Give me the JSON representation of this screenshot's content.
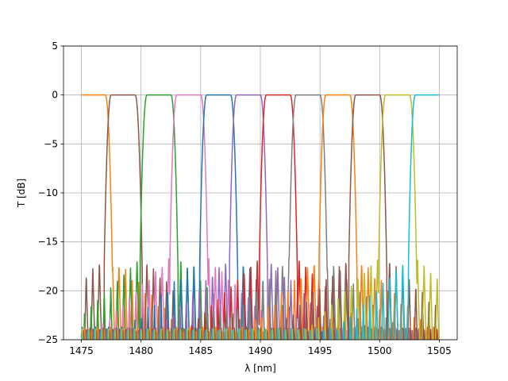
{
  "chart_data": {
    "type": "line",
    "title": "",
    "xlabel": "λ [nm]",
    "ylabel": "T [dB]",
    "xlim": [
      1473.5,
      1506.5
    ],
    "ylim": [
      -25,
      5
    ],
    "xticks": [
      1475,
      1480,
      1485,
      1490,
      1495,
      1500,
      1505
    ],
    "yticks": [
      5,
      0,
      -5,
      -10,
      -15,
      -20,
      -25
    ],
    "xtick_labels": [
      "1475",
      "1480",
      "1485",
      "1490",
      "1495",
      "1500",
      "1505"
    ],
    "ytick_labels": [
      "5",
      "0",
      "−5",
      "−10",
      "−15",
      "−20",
      "−25"
    ],
    "grid": true,
    "legend": "none",
    "x_range": [
      1475,
      1505
    ],
    "channel_width_nm": 5,
    "stopband_level_db": -16.5,
    "series": [
      {
        "color": "#ff7f0e",
        "passband": [
          1475.0,
          1477.0
        ],
        "edges": "right"
      },
      {
        "color": "#8c564b",
        "passband": [
          1477.5,
          1479.5
        ]
      },
      {
        "color": "#2ca02c",
        "passband": [
          1480.5,
          1482.5
        ]
      },
      {
        "color": "#e377c2",
        "passband": [
          1483.0,
          1485.0
        ]
      },
      {
        "color": "#1f77b4",
        "passband": [
          1485.5,
          1487.5
        ]
      },
      {
        "color": "#9467bd",
        "passband": [
          1488.0,
          1490.0
        ]
      },
      {
        "color": "#d62728",
        "passband": [
          1490.5,
          1492.5
        ]
      },
      {
        "color": "#7f7f7f",
        "passband": [
          1493.0,
          1495.0
        ]
      },
      {
        "color": "#ff7f0e",
        "passband": [
          1495.5,
          1497.5
        ]
      },
      {
        "color": "#8c564b",
        "passband": [
          1498.0,
          1500.0
        ]
      },
      {
        "color": "#bcbd22",
        "passband": [
          1500.5,
          1502.5
        ]
      },
      {
        "color": "#17becf",
        "passband": [
          1503.0,
          1505.0
        ],
        "edges": "left"
      }
    ]
  }
}
